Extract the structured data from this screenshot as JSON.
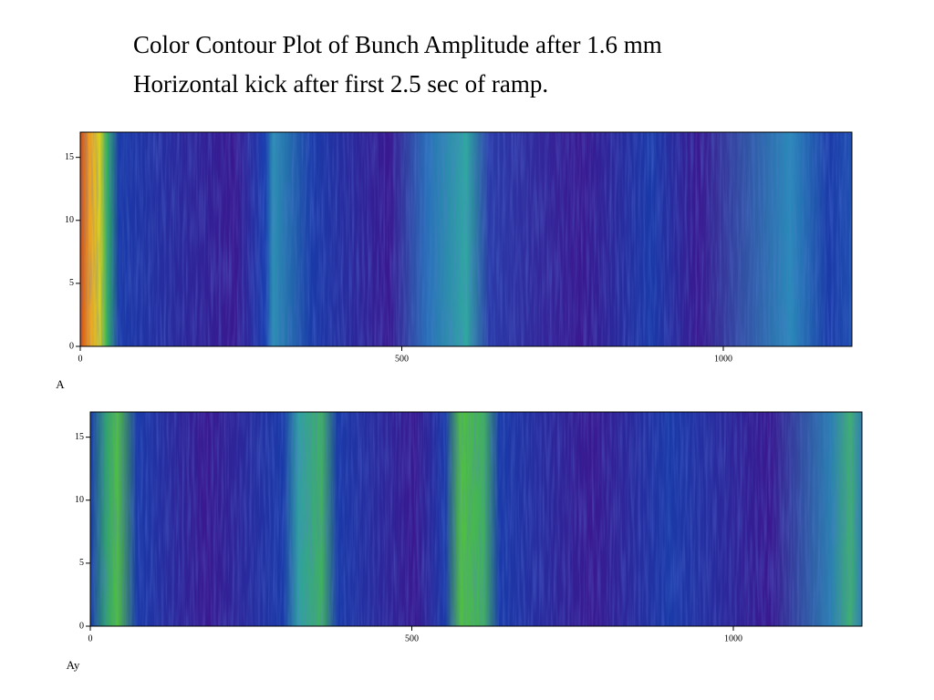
{
  "title": {
    "lines": [
      "Color Contour Plot of Bunch Amplitude after  1.6 mm",
      "Horizontal kick after first 2.5 sec of ramp."
    ]
  },
  "chart_data": [
    {
      "type": "heatmap",
      "xlabel": "A",
      "xlim": [
        0,
        1200
      ],
      "ylim": [
        0,
        17
      ],
      "xticks": [
        0,
        500,
        1000
      ],
      "yticks": [
        0,
        5,
        10,
        15
      ]
    },
    {
      "type": "heatmap",
      "xlabel": "Ay",
      "xlim": [
        0,
        1200
      ],
      "ylim": [
        0,
        17
      ],
      "xticks": [
        0,
        500,
        1000
      ],
      "yticks": [
        0,
        5,
        10,
        15
      ]
    }
  ]
}
